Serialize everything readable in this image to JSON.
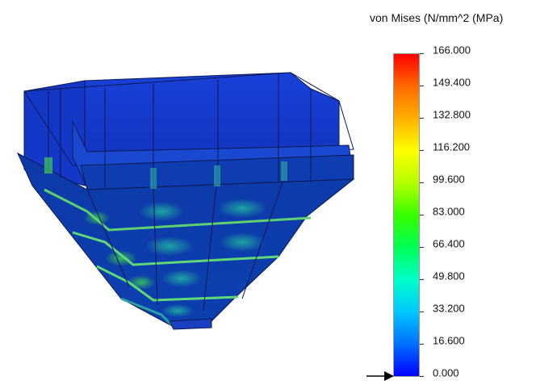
{
  "legend": {
    "title": "von Mises (N/mm^2 (MPa)",
    "values": [
      "166.000",
      "149.400",
      "132.800",
      "116.200",
      "99.600",
      "83.000",
      "66.400",
      "49.800",
      "33.200",
      "16.600",
      "0.000"
    ],
    "colors": {
      "max": "#ff0000",
      "mid": "#38ff00",
      "min": "#0000ff"
    }
  },
  "model": {
    "description_icon": "hopper-mesh-icon"
  }
}
